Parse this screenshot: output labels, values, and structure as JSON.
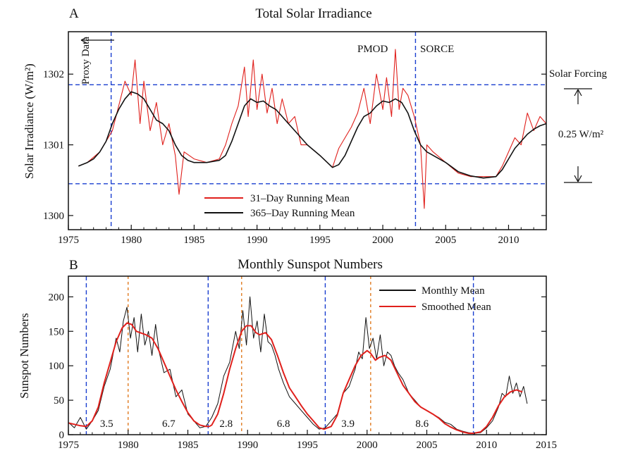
{
  "chart_data": [
    {
      "panel": "A",
      "type": "line",
      "title": "Total Solar Irradiance",
      "xlabel": "",
      "ylabel": "Solar Irradiance (W/m²)",
      "xlim": [
        1975,
        2013
      ],
      "ylim": [
        1299.8,
        1302.6
      ],
      "x_ticks": [
        1975,
        1980,
        1985,
        1990,
        1995,
        2000,
        2005,
        2010
      ],
      "y_ticks": [
        1300,
        1301,
        1302
      ],
      "legend_position": "bottom-center",
      "series": [
        {
          "name": "31–Day Running Mean",
          "color": "#e0201c",
          "x": [
            1975.8,
            1976.5,
            1977.5,
            1978.5,
            1979.0,
            1979.5,
            1980.0,
            1980.3,
            1980.7,
            1981.0,
            1981.5,
            1982.0,
            1982.5,
            1983.0,
            1983.5,
            1983.8,
            1984.2,
            1985.0,
            1986.0,
            1987.0,
            1987.5,
            1988.0,
            1988.5,
            1989.0,
            1989.3,
            1989.7,
            1990.0,
            1990.4,
            1990.8,
            1991.2,
            1991.6,
            1992.0,
            1992.5,
            1993.0,
            1993.5,
            1994.0,
            1995.0,
            1996.0,
            1996.5,
            1997.0,
            1997.5,
            1998.0,
            1998.5,
            1999.0,
            1999.5,
            2000.0,
            2000.3,
            2000.7,
            2001.0,
            2001.3,
            2001.6,
            2002.0,
            2002.5,
            2003.0,
            2003.3,
            2003.5,
            2004.0,
            2005.0,
            2006.0,
            2007.0,
            2008.0,
            2009.0,
            2009.5,
            2010.0,
            2010.5,
            2011.0,
            2011.5,
            2012.0,
            2012.5,
            2013.0
          ],
          "values": [
            1300.7,
            1300.75,
            1300.9,
            1301.2,
            1301.55,
            1301.9,
            1301.7,
            1302.2,
            1301.3,
            1301.9,
            1301.2,
            1301.6,
            1301.0,
            1301.3,
            1300.85,
            1300.3,
            1300.9,
            1300.8,
            1300.75,
            1300.8,
            1301.0,
            1301.3,
            1301.55,
            1302.1,
            1301.4,
            1302.2,
            1301.5,
            1302.0,
            1301.45,
            1301.8,
            1301.3,
            1301.65,
            1301.3,
            1301.4,
            1301.0,
            1301.0,
            1300.85,
            1300.68,
            1300.95,
            1301.1,
            1301.25,
            1301.45,
            1301.8,
            1301.3,
            1302.0,
            1301.5,
            1301.95,
            1301.4,
            1302.35,
            1301.5,
            1301.8,
            1301.7,
            1301.4,
            1301.0,
            1300.1,
            1301.0,
            1300.9,
            1300.75,
            1300.6,
            1300.55,
            1300.55,
            1300.55,
            1300.7,
            1300.9,
            1301.1,
            1301.0,
            1301.45,
            1301.2,
            1301.4,
            1301.3
          ]
        },
        {
          "name": "365–Day Running Mean",
          "color": "#111111",
          "x": [
            1975.8,
            1976.5,
            1977.0,
            1977.5,
            1978.0,
            1978.5,
            1979.0,
            1979.5,
            1980.0,
            1980.5,
            1981.0,
            1981.5,
            1982.0,
            1982.5,
            1983.0,
            1983.5,
            1984.0,
            1984.5,
            1985.0,
            1986.0,
            1987.0,
            1987.5,
            1988.0,
            1988.5,
            1989.0,
            1989.5,
            1990.0,
            1990.5,
            1991.0,
            1991.5,
            1992.0,
            1992.5,
            1993.0,
            1994.0,
            1995.0,
            1996.0,
            1996.5,
            1997.0,
            1997.5,
            1998.0,
            1998.5,
            1999.0,
            1999.5,
            2000.0,
            2000.5,
            2001.0,
            2001.5,
            2002.0,
            2002.5,
            2003.0,
            2003.5,
            2004.0,
            2005.0,
            2006.0,
            2007.0,
            2008.0,
            2009.0,
            2009.5,
            2010.0,
            2010.5,
            2011.0,
            2011.5,
            2012.0,
            2012.5,
            2013.0
          ],
          "values": [
            1300.7,
            1300.75,
            1300.8,
            1300.9,
            1301.05,
            1301.3,
            1301.5,
            1301.65,
            1301.75,
            1301.72,
            1301.65,
            1301.5,
            1301.35,
            1301.3,
            1301.2,
            1301.0,
            1300.85,
            1300.78,
            1300.75,
            1300.75,
            1300.78,
            1300.85,
            1301.05,
            1301.3,
            1301.55,
            1301.65,
            1301.6,
            1301.62,
            1301.55,
            1301.5,
            1301.4,
            1301.3,
            1301.2,
            1301.0,
            1300.85,
            1300.68,
            1300.72,
            1300.85,
            1301.05,
            1301.25,
            1301.4,
            1301.45,
            1301.55,
            1301.62,
            1301.6,
            1301.65,
            1301.6,
            1301.45,
            1301.2,
            1301.0,
            1300.9,
            1300.85,
            1300.75,
            1300.62,
            1300.56,
            1300.53,
            1300.55,
            1300.65,
            1300.8,
            1300.95,
            1301.05,
            1301.15,
            1301.22,
            1301.27,
            1301.3
          ]
        }
      ],
      "reference_lines": {
        "horizontal": [
          1301.85,
          1300.45
        ],
        "vertical": [
          1978.4,
          2002.6
        ],
        "color": "#1a3fd0"
      },
      "annotations": {
        "proxy_data": "Proxy Data",
        "pmod": "PMOD",
        "sorce": "SORCE",
        "forcing_title": "Solar Forcing",
        "forcing_value": "0.25 W/m²"
      }
    },
    {
      "panel": "B",
      "type": "line",
      "title": "Monthly Sunspot Numbers",
      "xlabel": "",
      "ylabel": "Sunspot Numbers",
      "xlim": [
        1975,
        2015
      ],
      "ylim": [
        0,
        230
      ],
      "x_ticks": [
        1975,
        1980,
        1985,
        1990,
        1995,
        2000,
        2005,
        2010,
        2015
      ],
      "y_ticks": [
        0,
        50,
        100,
        150,
        200
      ],
      "legend_position": "top-right",
      "series": [
        {
          "name": "Monthly Mean",
          "color": "#111111",
          "x": [
            1975.0,
            1975.5,
            1976.0,
            1976.5,
            1977.0,
            1977.5,
            1978.0,
            1978.5,
            1979.0,
            1979.3,
            1979.6,
            1979.9,
            1980.2,
            1980.5,
            1980.8,
            1981.1,
            1981.4,
            1981.7,
            1982.0,
            1982.3,
            1982.6,
            1983.0,
            1983.5,
            1984.0,
            1984.5,
            1985.0,
            1985.5,
            1986.0,
            1986.5,
            1987.0,
            1987.5,
            1988.0,
            1988.5,
            1989.0,
            1989.3,
            1989.6,
            1989.9,
            1990.2,
            1990.5,
            1990.8,
            1991.1,
            1991.4,
            1991.7,
            1992.0,
            1992.3,
            1992.6,
            1993.0,
            1993.5,
            1994.0,
            1994.5,
            1995.0,
            1995.5,
            1996.0,
            1996.5,
            1997.0,
            1997.5,
            1998.0,
            1998.5,
            1999.0,
            1999.3,
            1999.6,
            1999.9,
            2000.2,
            2000.5,
            2000.8,
            2001.1,
            2001.4,
            2001.7,
            2002.0,
            2002.3,
            2002.6,
            2003.0,
            2003.5,
            2004.0,
            2004.5,
            2005.0,
            2005.5,
            2006.0,
            2006.5,
            2007.0,
            2007.5,
            2008.0,
            2008.5,
            2009.0,
            2009.5,
            2010.0,
            2010.5,
            2011.0,
            2011.3,
            2011.6,
            2011.9,
            2012.2,
            2012.5,
            2012.8,
            2013.1,
            2013.4
          ],
          "values": [
            18,
            10,
            25,
            8,
            20,
            35,
            70,
            95,
            140,
            120,
            165,
            185,
            140,
            170,
            120,
            175,
            130,
            150,
            115,
            160,
            120,
            90,
            95,
            55,
            65,
            30,
            20,
            10,
            12,
            25,
            45,
            85,
            105,
            150,
            125,
            180,
            130,
            200,
            140,
            165,
            120,
            175,
            135,
            130,
            115,
            95,
            75,
            55,
            45,
            35,
            25,
            15,
            8,
            10,
            20,
            30,
            60,
            70,
            95,
            120,
            110,
            170,
            125,
            140,
            110,
            145,
            100,
            120,
            115,
            100,
            90,
            80,
            60,
            50,
            40,
            35,
            30,
            25,
            18,
            15,
            8,
            5,
            3,
            2,
            3,
            10,
            20,
            40,
            60,
            55,
            85,
            60,
            75,
            55,
            70,
            45
          ]
        },
        {
          "name": "Smoothed Mean",
          "color": "#e0201c",
          "x": [
            1975.0,
            1975.5,
            1976.0,
            1976.5,
            1977.0,
            1977.5,
            1978.0,
            1978.5,
            1979.0,
            1979.5,
            1979.9,
            1980.3,
            1980.7,
            1981.0,
            1981.5,
            1982.0,
            1982.5,
            1983.0,
            1983.5,
            1984.0,
            1984.5,
            1985.0,
            1985.5,
            1986.0,
            1986.5,
            1986.8,
            1987.0,
            1987.5,
            1988.0,
            1988.5,
            1989.0,
            1989.5,
            1989.9,
            1990.3,
            1990.7,
            1991.0,
            1991.5,
            1992.0,
            1992.5,
            1993.0,
            1993.5,
            1994.0,
            1994.5,
            1995.0,
            1995.5,
            1996.0,
            1996.4,
            1997.0,
            1997.5,
            1998.0,
            1998.5,
            1999.0,
            1999.5,
            2000.0,
            2000.3,
            2000.7,
            2001.0,
            2001.5,
            2002.0,
            2002.5,
            2003.0,
            2003.5,
            2004.0,
            2004.5,
            2005.0,
            2005.5,
            2006.0,
            2006.5,
            2007.0,
            2007.5,
            2008.0,
            2008.5,
            2008.9,
            2009.5,
            2010.0,
            2010.5,
            2011.0,
            2011.5,
            2012.0,
            2012.5,
            2013.0
          ],
          "values": [
            17,
            15,
            13,
            12,
            20,
            40,
            75,
            105,
            135,
            155,
            162,
            160,
            150,
            148,
            145,
            140,
            125,
            105,
            85,
            65,
            48,
            32,
            20,
            14,
            12,
            12,
            14,
            30,
            60,
            95,
            125,
            150,
            158,
            158,
            148,
            145,
            148,
            138,
            115,
            90,
            68,
            55,
            42,
            30,
            20,
            10,
            8,
            12,
            28,
            60,
            80,
            100,
            115,
            122,
            118,
            108,
            112,
            115,
            108,
            90,
            72,
            60,
            48,
            40,
            35,
            30,
            24,
            16,
            11,
            7,
            4,
            2,
            2,
            4,
            12,
            25,
            42,
            55,
            62,
            65,
            62
          ]
        }
      ],
      "reference_lines": {
        "minima": [
          1976.5,
          1986.7,
          1996.5,
          2008.9
        ],
        "maxima": [
          1980.0,
          1989.5,
          2000.3
        ],
        "minima_color": "#1a3fd0",
        "maxima_color": "#e07a20"
      },
      "phase_labels": [
        {
          "text": "3.5",
          "x": 1978.2
        },
        {
          "text": "6.7",
          "x": 1983.4
        },
        {
          "text": "2.8",
          "x": 1988.2
        },
        {
          "text": "6.8",
          "x": 1993.0
        },
        {
          "text": "3.9",
          "x": 1998.4
        },
        {
          "text": "8.6",
          "x": 2004.6
        }
      ]
    }
  ],
  "panel_labels": [
    "A",
    "B"
  ]
}
